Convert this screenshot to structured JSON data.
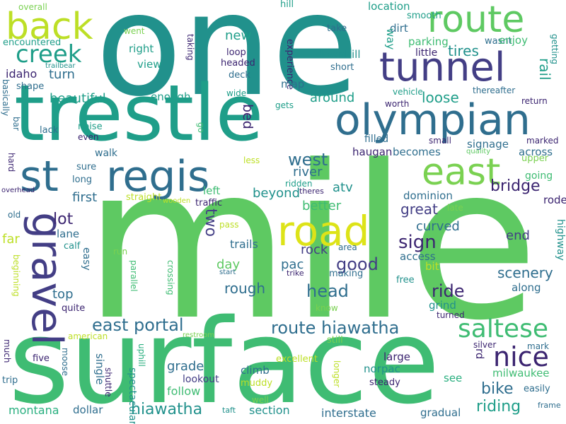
{
  "palette": {
    "background": "#ffffff",
    "purple": "#3b2470",
    "indigo": "#433e85",
    "blue": "#355f8d",
    "steel": "#2f6e8e",
    "teal": "#21918c",
    "sea": "#1f9e89",
    "green": "#29af7f",
    "jade": "#3fbc73",
    "lime": "#5ec962",
    "light": "#7ad151",
    "yellow": "#bddf26",
    "gold": "#dde318"
  },
  "words": [
    "one",
    "mile",
    "surface",
    "trestle",
    "regis",
    "st",
    "route",
    "back",
    "tunnel",
    "olympian",
    "east",
    "gravel",
    "road",
    "creek",
    "saltese",
    "nice",
    "east portal",
    "route hiawatha",
    "west",
    "good",
    "head",
    "rough",
    "hiawatha",
    "bike",
    "riding",
    "ride",
    "sign",
    "lot",
    "overall",
    "went",
    "encountered",
    "hill",
    "take",
    "location",
    "smooth",
    "dirt",
    "way",
    "wasnt",
    "getting",
    "enjoy",
    "little",
    "parking",
    "tires",
    "new",
    "right",
    "view",
    "loop",
    "headed",
    "deck",
    "downhill",
    "short",
    "experience",
    "taking",
    "trailbear",
    "idaho",
    "turn",
    "shape",
    "basically",
    "map",
    "wide",
    "vehicle",
    "thereafter",
    "return",
    "worth",
    "gets",
    "around",
    "loose",
    "rail",
    "beautiful",
    "enough",
    "noise",
    "even",
    "lack",
    "bar",
    "go",
    "bed",
    "filled",
    "small",
    "marked",
    "quality",
    "upper",
    "across",
    "signage",
    "haugan",
    "becomes",
    "river",
    "going",
    "less",
    "walk",
    "hard",
    "sure",
    "long",
    "ridden",
    "theres",
    "atv",
    "dominion",
    "bridge",
    "rode",
    "first",
    "straight",
    "left",
    "beyond",
    "better",
    "great",
    "late",
    "overhead",
    "old",
    "wooden",
    "traffic",
    "two",
    "far",
    "lane",
    "calf",
    "pass",
    "trails",
    "curved",
    "end",
    "highway",
    "rock",
    "area",
    "access",
    "run",
    "easy",
    "day",
    "pac",
    "making",
    "bit",
    "scenery",
    "crossing",
    "parallel",
    "start",
    "trike",
    "beginning",
    "top",
    "quite",
    "free",
    "along",
    "grind",
    "know",
    "turned",
    "american",
    "restroom",
    "still",
    "silver",
    "mark",
    "rd",
    "much",
    "five",
    "moose",
    "uphill",
    "single",
    "shuttle",
    "spectacular",
    "lookout",
    "grade",
    "follow",
    "climb",
    "muddy",
    "excellent",
    "longer",
    "large",
    "norpac",
    "steady",
    "see",
    "milwaukee",
    "easily",
    "trip",
    "montana",
    "dollar",
    "taft",
    "well",
    "section",
    "interstate",
    "gradual",
    "frame"
  ]
}
